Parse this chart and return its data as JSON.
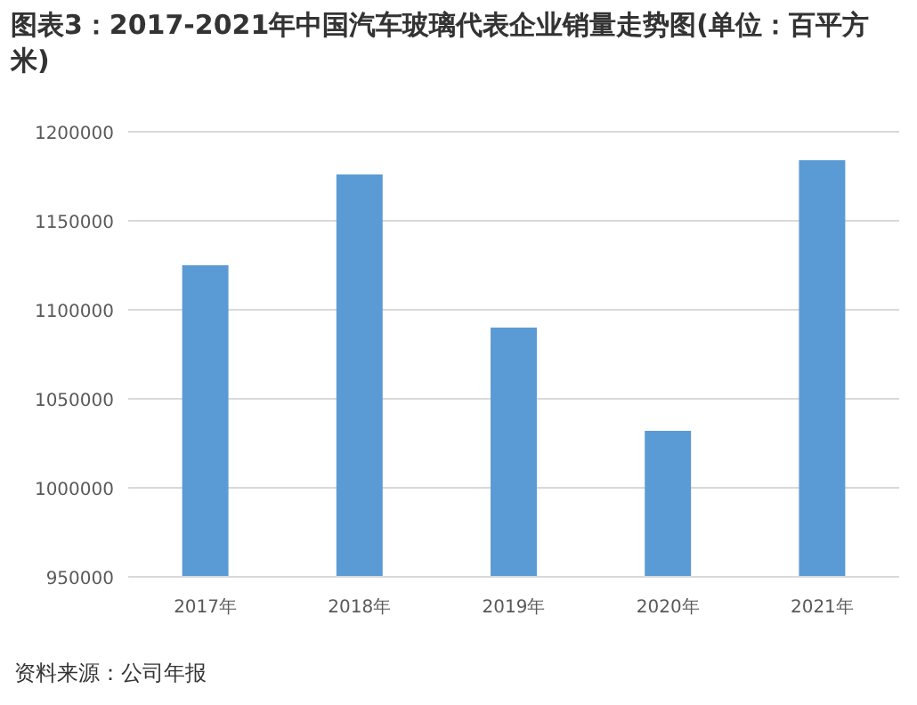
{
  "chart_data": {
    "type": "bar",
    "title": "图表3：2017-2021年中国汽车玻璃代表企业销量走势图(单位：百平方米)",
    "categories": [
      "2017年",
      "2018年",
      "2019年",
      "2020年",
      "2021年"
    ],
    "values": [
      1125000,
      1176000,
      1090000,
      1032000,
      1184000
    ],
    "color": "#5b9bd5",
    "ylim": [
      950000,
      1200000
    ],
    "yticks": [
      950000,
      1000000,
      1050000,
      1100000,
      1150000,
      1200000
    ],
    "grid": "y",
    "annotations": [
      "资料来源：公司年报"
    ]
  }
}
